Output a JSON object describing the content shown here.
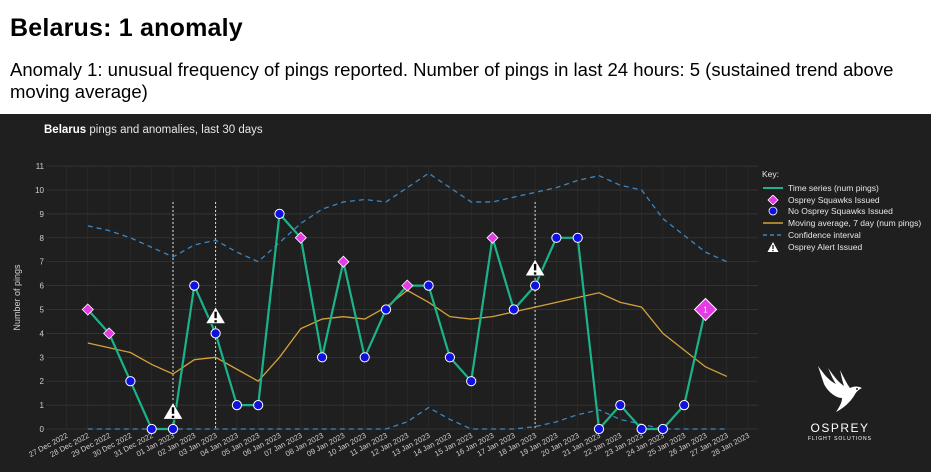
{
  "page": {
    "heading": "Belarus: 1 anomaly",
    "description": "Anomaly 1: unusual frequency of pings reported. Number of pings in last 24 hours: 5 (sustained trend above moving average)"
  },
  "logo": {
    "brand": "OSPREY",
    "sub": "FLIGHT SOLUTIONS",
    "icon": "osprey-bird-icon"
  },
  "colors": {
    "panel_bg": "#1f1f1f",
    "series": "#1bb38a",
    "squawk": "#e53be5",
    "no_squawk": "#1010e0",
    "moving_avg": "#d4a13a",
    "confidence": "#3d86c0",
    "alert": "#ffffff"
  },
  "chart_data": {
    "type": "line",
    "title_bold": "Belarus",
    "title_rest": " pings and anomalies, last 30 days",
    "ylabel": "Number of pings",
    "ylim": [
      0,
      11
    ],
    "yticks": [
      0,
      1,
      2,
      3,
      4,
      5,
      6,
      7,
      8,
      9,
      10,
      11
    ],
    "grid": true,
    "legend_position": "right",
    "key_title": "Key:",
    "legend": [
      {
        "label": "Time series (num pings)",
        "kind": "line"
      },
      {
        "label": "Osprey Squawks Issued",
        "kind": "squawk"
      },
      {
        "label": "No Osprey Squawks Issued",
        "kind": "no-squawk"
      },
      {
        "label": "Moving average, 7 day (num pings)",
        "kind": "avg"
      },
      {
        "label": "Confidence interval",
        "kind": "ci"
      },
      {
        "label": "Osprey Alert Issued",
        "kind": "alert"
      }
    ],
    "x": [
      "27 Dec 2022",
      "28 Dec 2022",
      "29 Dec 2022",
      "30 Dec 2022",
      "31 Dec 2022",
      "01 Jan 2023",
      "02 Jan 2023",
      "03 Jan 2023",
      "04 Jan 2023",
      "05 Jan 2023",
      "06 Jan 2023",
      "07 Jan 2023",
      "08 Jan 2023",
      "09 Jan 2023",
      "10 Jan 2023",
      "11 Jan 2023",
      "12 Jan 2023",
      "13 Jan 2023",
      "14 Jan 2023",
      "15 Jan 2023",
      "16 Jan 2023",
      "17 Jan 2023",
      "18 Jan 2023",
      "19 Jan 2023",
      "20 Jan 2023",
      "21 Jan 2023",
      "22 Jan 2023",
      "23 Jan 2023",
      "24 Jan 2023",
      "25 Jan 2023",
      "26 Jan 2023",
      "27 Jan 2023",
      "28 Jan 2023"
    ],
    "series_dates": [
      "28 Dec 2022",
      "29 Dec 2022",
      "30 Dec 2022",
      "31 Dec 2022",
      "01 Jan 2023",
      "02 Jan 2023",
      "03 Jan 2023",
      "04 Jan 2023",
      "05 Jan 2023",
      "06 Jan 2023",
      "07 Jan 2023",
      "08 Jan 2023",
      "09 Jan 2023",
      "10 Jan 2023",
      "11 Jan 2023",
      "12 Jan 2023",
      "13 Jan 2023",
      "14 Jan 2023",
      "15 Jan 2023",
      "16 Jan 2023",
      "17 Jan 2023",
      "18 Jan 2023",
      "19 Jan 2023",
      "20 Jan 2023",
      "21 Jan 2023",
      "22 Jan 2023",
      "23 Jan 2023",
      "24 Jan 2023",
      "25 Jan 2023",
      "26 Jan 2023"
    ],
    "series_values": [
      5,
      4,
      2,
      0,
      0,
      6,
      4,
      1,
      1,
      9,
      8,
      3,
      7,
      3,
      5,
      6,
      6,
      3,
      2,
      8,
      5,
      6,
      8,
      8,
      0,
      1,
      0,
      0,
      1,
      5
    ],
    "squawk": [
      true,
      true,
      false,
      false,
      false,
      false,
      false,
      false,
      false,
      false,
      true,
      false,
      true,
      false,
      false,
      true,
      false,
      false,
      false,
      true,
      false,
      false,
      false,
      false,
      false,
      false,
      false,
      false,
      false,
      false
    ],
    "moving_average": [
      3.6,
      3.4,
      3.2,
      2.7,
      2.3,
      2.9,
      3.0,
      2.5,
      2.0,
      3.0,
      4.2,
      4.6,
      4.7,
      4.6,
      5.1,
      5.8,
      5.3,
      4.7,
      4.6,
      4.7,
      4.9,
      5.1,
      5.3,
      5.5,
      5.7,
      5.3,
      5.1,
      4.0,
      3.3,
      2.6,
      2.2
    ],
    "moving_average_dates": [
      "28 Dec 2022",
      "29 Dec 2022",
      "30 Dec 2022",
      "31 Dec 2022",
      "01 Jan 2023",
      "02 Jan 2023",
      "03 Jan 2023",
      "04 Jan 2023",
      "05 Jan 2023",
      "06 Jan 2023",
      "07 Jan 2023",
      "08 Jan 2023",
      "09 Jan 2023",
      "10 Jan 2023",
      "11 Jan 2023",
      "12 Jan 2023",
      "13 Jan 2023",
      "14 Jan 2023",
      "15 Jan 2023",
      "16 Jan 2023",
      "17 Jan 2023",
      "18 Jan 2023",
      "19 Jan 2023",
      "20 Jan 2023",
      "21 Jan 2023",
      "22 Jan 2023",
      "23 Jan 2023",
      "24 Jan 2023",
      "25 Jan 2023",
      "26 Jan 2023",
      "27 Jan 2023"
    ],
    "confidence_upper": [
      8.5,
      8.3,
      8.0,
      7.6,
      7.2,
      7.7,
      7.9,
      7.4,
      7.0,
      7.8,
      8.6,
      9.2,
      9.5,
      9.6,
      9.5,
      10.1,
      10.7,
      10.1,
      9.5,
      9.5,
      9.7,
      9.9,
      10.1,
      10.4,
      10.6,
      10.2,
      10.0,
      8.8,
      8.1,
      7.4,
      7.0
    ],
    "confidence_lower": [
      0,
      0,
      0,
      0,
      0,
      0,
      0,
      0,
      0,
      0,
      0,
      0,
      0,
      0,
      0,
      0.3,
      0.9,
      0.4,
      0,
      0,
      0,
      0.1,
      0.3,
      0.6,
      0.8,
      0.4,
      0.2,
      0,
      0,
      0,
      0
    ],
    "alerts": [
      {
        "date": "01 Jan 2023",
        "value": 0.7
      },
      {
        "date": "03 Jan 2023",
        "value": 4.7
      },
      {
        "date": "18 Jan 2023",
        "value": 6.7
      }
    ],
    "alert_dates_lines": [
      "01 Jan 2023",
      "03 Jan 2023",
      "18 Jan 2023"
    ],
    "anomaly": {
      "date": "26 Jan 2023",
      "value": 5,
      "label": "1"
    }
  }
}
